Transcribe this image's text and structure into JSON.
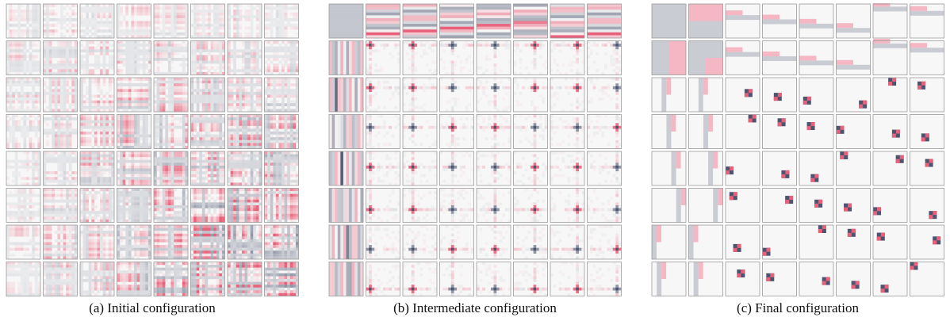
{
  "figure": {
    "panels": [
      {
        "id": "initial",
        "caption": "(a) Initial configuration",
        "stage": 0
      },
      {
        "id": "intermediate",
        "caption": "(b) Intermediate configuration",
        "stage": 1
      },
      {
        "id": "final",
        "caption": "(c) Final configuration",
        "stage": 2
      }
    ],
    "grid": {
      "rows": 8,
      "cols": 8
    },
    "colors": {
      "positive": "#e8607a",
      "negative": "#4b5570",
      "neutral": "#f7f7f7",
      "tile_border": "#9a9a9a",
      "gray_block": "#c9ccd3",
      "pink_block": "#f4b7c3"
    }
  }
}
